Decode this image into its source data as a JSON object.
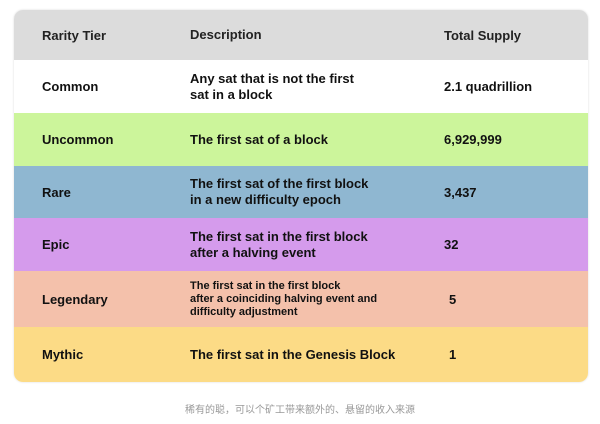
{
  "table": {
    "header": [
      "Rarity Tier",
      "Description",
      "Total Supply"
    ],
    "rows": [
      {
        "tier": "Common",
        "description": [
          "Any sat that is not the first",
          "sat in a block"
        ],
        "supply": "2.1 quadrillion"
      },
      {
        "tier": "Uncommon",
        "description": [
          "The first sat of a block"
        ],
        "supply": "6,929,999"
      },
      {
        "tier": "Rare",
        "description": [
          "The first sat of the first block",
          "in a new difficulty epoch"
        ],
        "supply": "3,437"
      },
      {
        "tier": "Epic",
        "description": [
          "The first sat in the first block",
          "after a halving event"
        ],
        "supply": "32"
      },
      {
        "tier": "Legendary",
        "description": [
          "The first sat in the first block",
          "after a coinciding halving event and",
          "difficulty adjustment"
        ],
        "supply": "5"
      },
      {
        "tier": "Mythic",
        "description": [
          "The first sat in the Genesis Block"
        ],
        "supply": "1"
      }
    ]
  },
  "caption": "稀有的聪，可以个矿工带来额外的、悬留的收入来源"
}
